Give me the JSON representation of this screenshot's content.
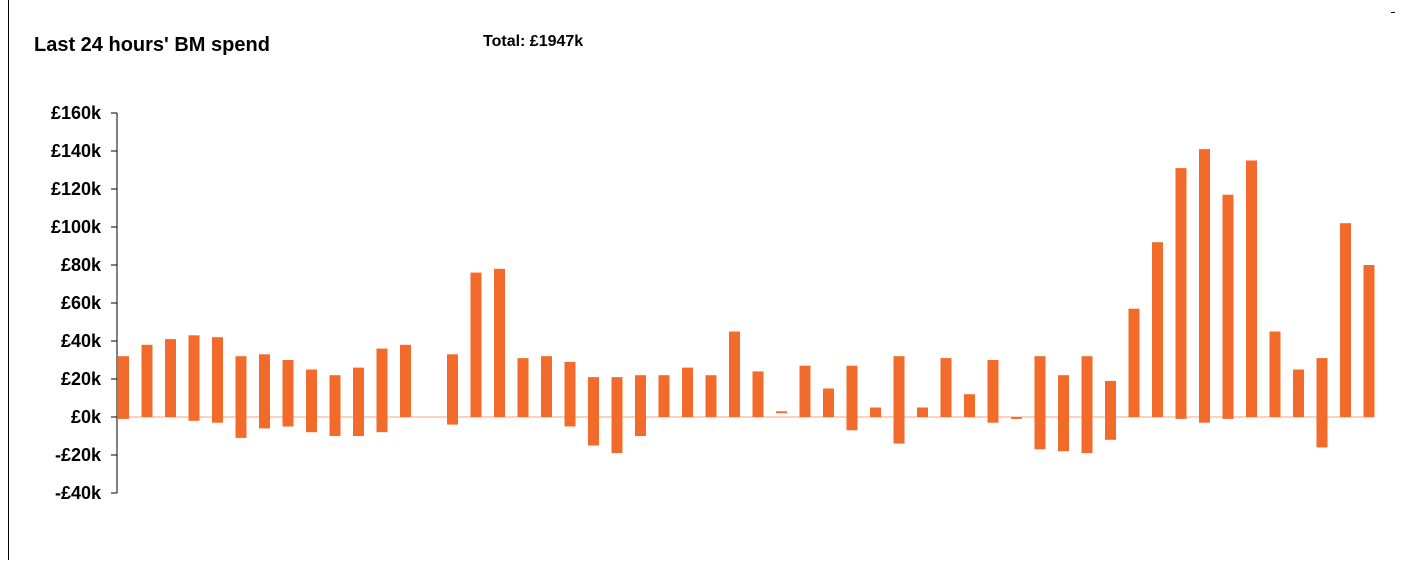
{
  "header": {
    "title": "Last 24 hours' BM spend",
    "total": "Total: £1947k"
  },
  "chart_data": {
    "type": "bar",
    "title": "Last 24 hours' BM spend",
    "subtitle": "Total: £1947k",
    "xlabel": "",
    "ylabel": "",
    "ylim": [
      -40,
      160
    ],
    "y_ticks": [
      160,
      140,
      120,
      100,
      80,
      60,
      40,
      20,
      0,
      -20,
      -40
    ],
    "y_tick_labels": [
      "£160k",
      "£140k",
      "£120k",
      "£100k",
      "£80k",
      "£60k",
      "£40k",
      "£20k",
      "£0k",
      "-£20k",
      "-£40k"
    ],
    "grid": false,
    "legend": "none",
    "color": "#F26B2A",
    "units": "£k",
    "bars": [
      {
        "low": -1,
        "high": 32
      },
      {
        "low": 0,
        "high": 38
      },
      {
        "low": 0,
        "high": 41
      },
      {
        "low": -2,
        "high": 43
      },
      {
        "low": -3,
        "high": 42
      },
      {
        "low": -11,
        "high": 32
      },
      {
        "low": -6,
        "high": 33
      },
      {
        "low": -5,
        "high": 30
      },
      {
        "low": -8,
        "high": 25
      },
      {
        "low": -10,
        "high": 22
      },
      {
        "low": -10,
        "high": 26
      },
      {
        "low": -8,
        "high": 36
      },
      {
        "low": 0,
        "high": 38
      },
      null,
      {
        "low": -4,
        "high": 33
      },
      {
        "low": 0,
        "high": 76
      },
      {
        "low": 0,
        "high": 78
      },
      {
        "low": 0,
        "high": 31
      },
      {
        "low": 0,
        "high": 32
      },
      {
        "low": -5,
        "high": 29
      },
      {
        "low": -15,
        "high": 21
      },
      {
        "low": -19,
        "high": 21
      },
      {
        "low": -10,
        "high": 22
      },
      {
        "low": 0,
        "high": 22
      },
      {
        "low": 0,
        "high": 26
      },
      {
        "low": 0,
        "high": 22
      },
      {
        "low": 0,
        "high": 45
      },
      {
        "low": 0,
        "high": 24
      },
      {
        "low": 2,
        "high": 3
      },
      {
        "low": 0,
        "high": 27
      },
      {
        "low": 0,
        "high": 15
      },
      {
        "low": -7,
        "high": 27
      },
      {
        "low": 0,
        "high": 5
      },
      {
        "low": -14,
        "high": 32
      },
      {
        "low": 0,
        "high": 5
      },
      {
        "low": 0,
        "high": 31
      },
      {
        "low": 0,
        "high": 12
      },
      {
        "low": -3,
        "high": 30
      },
      {
        "low": -1,
        "high": 0
      },
      {
        "low": -17,
        "high": 32
      },
      {
        "low": -18,
        "high": 22
      },
      {
        "low": -19,
        "high": 32
      },
      {
        "low": -12,
        "high": 19
      },
      {
        "low": 0,
        "high": 57
      },
      {
        "low": 0,
        "high": 92
      },
      {
        "low": -1,
        "high": 131
      },
      {
        "low": -3,
        "high": 141
      },
      {
        "low": -1,
        "high": 117
      },
      {
        "low": 0,
        "high": 135
      },
      {
        "low": 0,
        "high": 45
      },
      {
        "low": 0,
        "high": 25
      },
      {
        "low": -16,
        "high": 31
      },
      {
        "low": 0,
        "high": 102
      },
      {
        "low": 0,
        "high": 80
      }
    ]
  }
}
